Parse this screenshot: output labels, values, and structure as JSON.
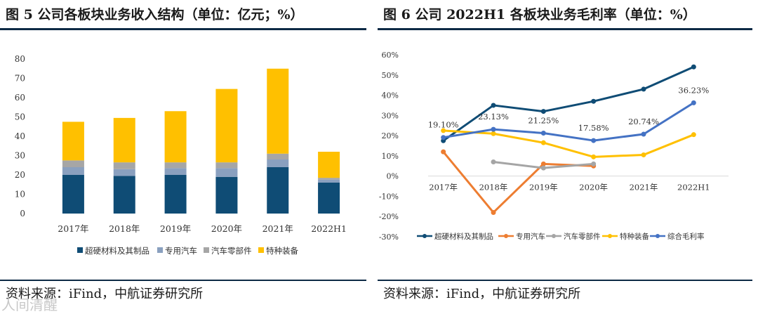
{
  "left": {
    "title": "图 5 公司各板块业务收入结构（单位：亿元；%）",
    "source": "资料来源：iFind，中航证券研究所",
    "chart_data": {
      "type": "bar",
      "stacked": true,
      "title": "图 5 公司各板块业务收入结构（单位：亿元；%）",
      "categories": [
        "2017年",
        "2018年",
        "2019年",
        "2020年",
        "2021年",
        "2022H1"
      ],
      "ylim": [
        0,
        80
      ],
      "yticks": [
        0,
        10,
        20,
        30,
        40,
        50,
        60,
        70,
        80
      ],
      "legend_position": "bottom",
      "series": [
        {
          "name": "超硬材料及其制品",
          "color": "#0f4c75",
          "values": [
            20,
            19.5,
            20,
            19,
            24,
            16
          ]
        },
        {
          "name": "专用汽车",
          "color": "#8aa0bf",
          "values": [
            4,
            3.5,
            3.5,
            4.5,
            4,
            1.5
          ]
        },
        {
          "name": "汽车零部件",
          "color": "#a6a6a6",
          "values": [
            3.5,
            3.5,
            3,
            3,
            3,
            1
          ]
        },
        {
          "name": "特种装备",
          "color": "#ffc000",
          "values": [
            20,
            23,
            26.5,
            38,
            44,
            13.5
          ]
        }
      ]
    }
  },
  "right": {
    "title": "图 6 公司 2022H1 各板块业务毛利率（单位：%）",
    "source": "资料来源：iFind，中航证券研究所",
    "chart_data": {
      "type": "line",
      "title": "图 6 公司 2022H1 各板块业务毛利率（单位：%）",
      "categories": [
        "2017年",
        "2018年",
        "2019年",
        "2020年",
        "2021年",
        "2022H1"
      ],
      "ylim": [
        -30,
        60
      ],
      "yticks": [
        "-30%",
        "-20%",
        "-10%",
        "0%",
        "10%",
        "20%",
        "30%",
        "40%",
        "50%",
        "60%"
      ],
      "legend_position": "bottom",
      "series": [
        {
          "name": "超硬材料及其制品",
          "color": "#0f4c75",
          "values": [
            17.5,
            35,
            32,
            37,
            43,
            54
          ]
        },
        {
          "name": "专用汽车",
          "color": "#ed7d31",
          "values": [
            12,
            -18,
            6,
            5,
            null,
            null
          ]
        },
        {
          "name": "汽车零部件",
          "color": "#a5a5a5",
          "values": [
            null,
            7,
            4,
            6,
            null,
            null
          ]
        },
        {
          "name": "特种装备",
          "color": "#ffc000",
          "values": [
            22.5,
            21,
            16.5,
            9.5,
            10.5,
            20.5
          ]
        },
        {
          "name": "综合毛利率",
          "color": "#4472c4",
          "values": [
            19.1,
            23.13,
            21.25,
            17.58,
            20.74,
            36.23
          ],
          "labels": [
            "19.10%",
            "23.13%",
            "21.25%",
            "17.58%",
            "20.74%",
            "36.23%"
          ]
        }
      ]
    }
  },
  "watermark": "人间清醒"
}
